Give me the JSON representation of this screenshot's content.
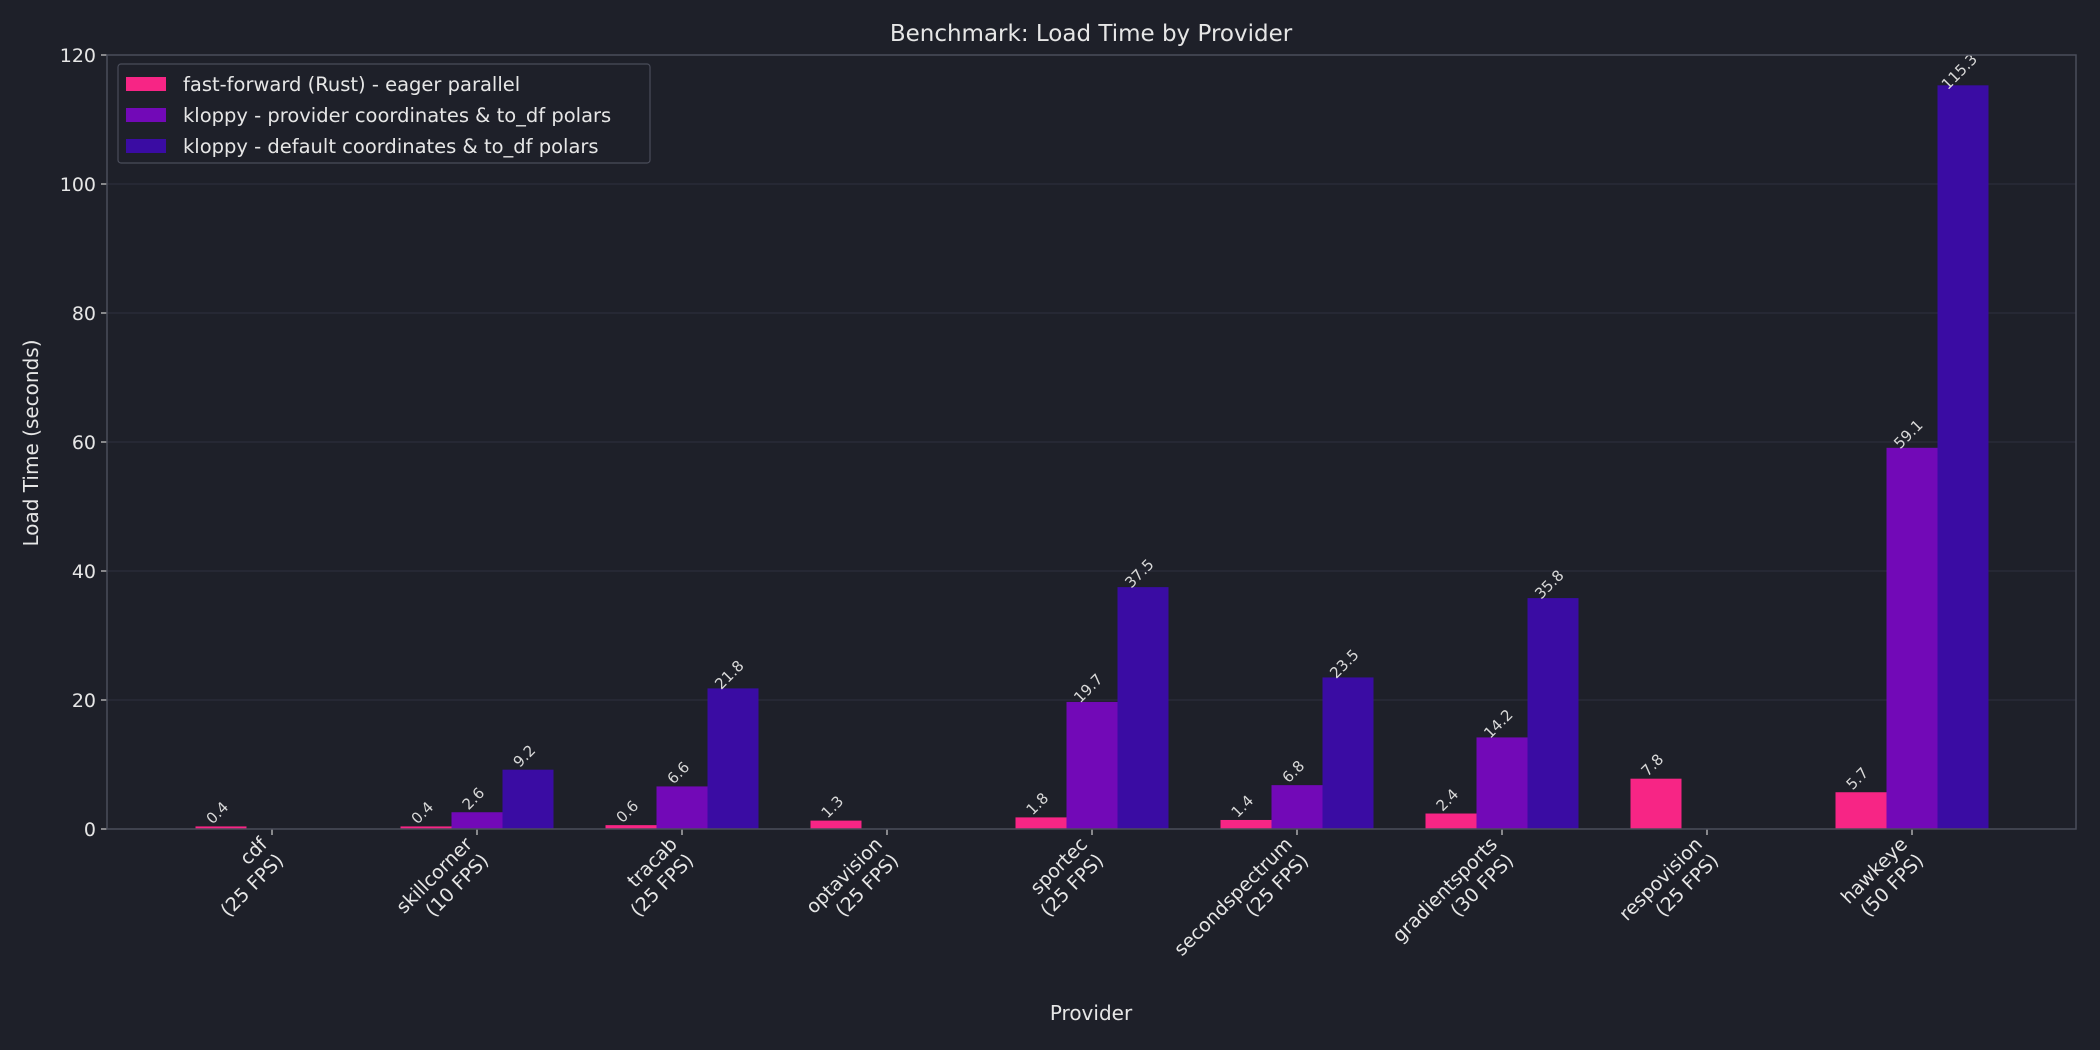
{
  "chart_data": {
    "type": "bar",
    "title": "Benchmark: Load Time by Provider",
    "xlabel": "Provider",
    "ylabel": "Load Time (seconds)",
    "ylim": [
      0,
      120
    ],
    "yticks": [
      0,
      20,
      40,
      60,
      80,
      100,
      120
    ],
    "grid": true,
    "legend_position": "top-left",
    "categories": [
      [
        "cdf",
        "(25 FPS)"
      ],
      [
        "skillcorner",
        "(10 FPS)"
      ],
      [
        "tracab",
        "(25 FPS)"
      ],
      [
        "optavision",
        "(25 FPS)"
      ],
      [
        "sportec",
        "(25 FPS)"
      ],
      [
        "secondspectrum",
        "(25 FPS)"
      ],
      [
        "gradientsports",
        "(30 FPS)"
      ],
      [
        "respovision",
        "(25 FPS)"
      ],
      [
        "hawkeye",
        "(50 FPS)"
      ]
    ],
    "series": [
      {
        "name": "fast-forward (Rust) - eager parallel",
        "color": "#f72585",
        "values": [
          0.4,
          0.4,
          0.6,
          1.3,
          1.8,
          1.4,
          2.4,
          7.8,
          5.7
        ],
        "labels": [
          "0.4",
          "0.4",
          "0.6",
          "1.3",
          "1.8",
          "1.4",
          "2.4",
          "7.8",
          "5.7"
        ]
      },
      {
        "name": "kloppy - provider coordinates & to_df polars",
        "color": "#7209b7",
        "values": [
          null,
          2.6,
          6.6,
          null,
          19.7,
          6.8,
          14.2,
          null,
          59.1
        ],
        "labels": [
          "",
          "2.6",
          "6.6",
          "",
          "19.7",
          "6.8",
          "14.2",
          "",
          "59.1"
        ]
      },
      {
        "name": "kloppy - default coordinates & to_df polars",
        "color": "#3a0ca3",
        "values": [
          null,
          9.2,
          21.8,
          null,
          37.5,
          23.5,
          35.8,
          null,
          115.3
        ],
        "labels": [
          "",
          "9.2",
          "21.8",
          "",
          "37.5",
          "23.5",
          "35.8",
          "",
          "115.3"
        ]
      }
    ]
  }
}
